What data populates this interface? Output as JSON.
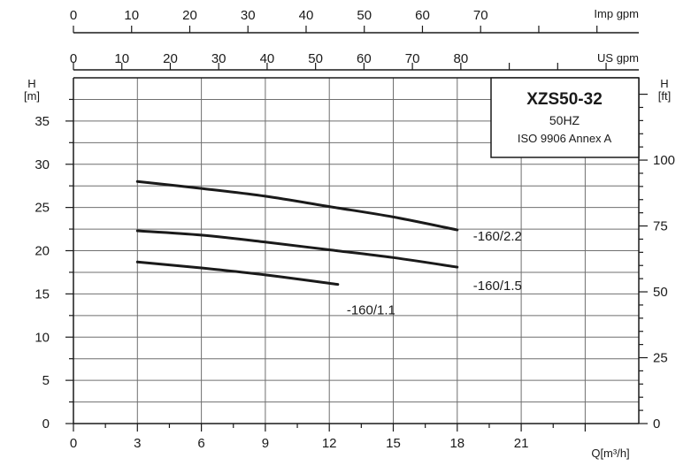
{
  "chart_data": {
    "type": "line",
    "title": "XZS50-32",
    "subtitle": "50HZ",
    "standard": "ISO 9906 Annex A",
    "xlabel": "Q[m³/h]",
    "xlim": [
      0,
      24
    ],
    "x_ticks": [
      0,
      3,
      6,
      9,
      12,
      15,
      18,
      21
    ],
    "ylabel_left": "H\n[m]",
    "ylim": [
      0,
      40
    ],
    "y_ticks_left": [
      0,
      5,
      10,
      15,
      20,
      25,
      30,
      35
    ],
    "ylabel_right": "H\n[ft]",
    "y_ticks_right": [
      0,
      25,
      50,
      75,
      100
    ],
    "top_axis_imp": {
      "label": "Imp gpm",
      "ticks": [
        0,
        10,
        20,
        30,
        40,
        50,
        60,
        70
      ]
    },
    "top_axis_us": {
      "label": "US gpm",
      "ticks": [
        0,
        10,
        20,
        30,
        40,
        50,
        60,
        70,
        80
      ]
    },
    "grid": true,
    "series": [
      {
        "name": "-160/2.2",
        "x": [
          3,
          6,
          9,
          12,
          15,
          18
        ],
        "y": [
          28.0,
          27.2,
          26.3,
          25.1,
          23.9,
          22.4
        ]
      },
      {
        "name": "-160/1.5",
        "x": [
          3,
          6,
          9,
          12,
          15,
          18
        ],
        "y": [
          22.3,
          21.8,
          21.0,
          20.1,
          19.2,
          18.1
        ]
      },
      {
        "name": "-160/1.1",
        "x": [
          3,
          6,
          9,
          12.4
        ],
        "y": [
          18.7,
          18.0,
          17.2,
          16.1
        ]
      }
    ],
    "colors": {
      "line": "#1a1a1a",
      "grid": "#6f6f6f",
      "background": "#ffffff"
    }
  }
}
